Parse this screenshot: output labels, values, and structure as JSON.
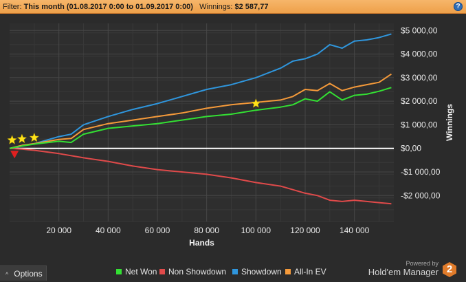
{
  "filter": {
    "label": "Filter:",
    "period": "This month (01.08.2017 0:00 to 01.09.2017 0:00)",
    "winnings_label": "Winnings:",
    "winnings_value": "$2 587,77",
    "help_icon": "question-icon",
    "help_glyph": "?"
  },
  "chart_data": {
    "type": "line",
    "xlabel": "Hands",
    "ylabel": "Winnings",
    "xlim": [
      0,
      156000
    ],
    "ylim": [
      -3100,
      5300
    ],
    "x_ticks": [
      20000,
      40000,
      60000,
      80000,
      100000,
      120000,
      140000
    ],
    "x_tick_labels": [
      "20 000",
      "40 000",
      "60 000",
      "80 000",
      "100 000",
      "120 000",
      "140 000"
    ],
    "y_ticks": [
      5000,
      4000,
      3000,
      2000,
      1000,
      0,
      -1000,
      -2000
    ],
    "y_tick_labels": [
      "$5 000,00",
      "$4 000,00",
      "$3 000,00",
      "$2 000,00",
      "$1 000,00",
      "$0,00",
      "-$1 000,00",
      "-$2 000,00"
    ],
    "grid": true,
    "legend_position": "bottom",
    "series": [
      {
        "name": "Net Won",
        "color": "#33e033",
        "x": [
          0,
          5000,
          10000,
          20000,
          25000,
          30000,
          40000,
          50000,
          60000,
          70000,
          80000,
          90000,
          100000,
          110000,
          115000,
          120000,
          125000,
          130000,
          135000,
          140000,
          145000,
          150000,
          155000
        ],
        "y": [
          0,
          100,
          180,
          300,
          250,
          600,
          850,
          950,
          1050,
          1200,
          1350,
          1450,
          1620,
          1750,
          1850,
          2100,
          2000,
          2400,
          2050,
          2250,
          2300,
          2420,
          2580
        ]
      },
      {
        "name": "Non Showdown",
        "color": "#e04a4a",
        "x": [
          0,
          5000,
          10000,
          20000,
          30000,
          40000,
          50000,
          60000,
          70000,
          80000,
          90000,
          100000,
          110000,
          120000,
          125000,
          130000,
          135000,
          140000,
          145000,
          150000,
          155000
        ],
        "y": [
          0,
          -30,
          -80,
          -220,
          -400,
          -550,
          -750,
          -900,
          -1000,
          -1100,
          -1250,
          -1450,
          -1600,
          -1900,
          -2000,
          -2200,
          -2250,
          -2200,
          -2250,
          -2300,
          -2350
        ]
      },
      {
        "name": "Showdown",
        "color": "#2f96dd",
        "x": [
          0,
          5000,
          10000,
          20000,
          25000,
          30000,
          40000,
          50000,
          60000,
          70000,
          80000,
          90000,
          100000,
          110000,
          115000,
          120000,
          125000,
          130000,
          135000,
          140000,
          145000,
          150000,
          155000
        ],
        "y": [
          0,
          100,
          200,
          500,
          600,
          1000,
          1350,
          1650,
          1900,
          2200,
          2500,
          2700,
          3000,
          3400,
          3700,
          3800,
          4000,
          4400,
          4250,
          4550,
          4600,
          4700,
          4850
        ]
      },
      {
        "name": "All-In EV",
        "color": "#f59a3a",
        "x": [
          0,
          5000,
          10000,
          20000,
          25000,
          30000,
          40000,
          50000,
          60000,
          70000,
          80000,
          90000,
          100000,
          110000,
          115000,
          120000,
          125000,
          130000,
          135000,
          140000,
          145000,
          150000,
          155000
        ],
        "y": [
          0,
          130,
          200,
          380,
          420,
          800,
          1050,
          1200,
          1350,
          1500,
          1700,
          1850,
          1950,
          2050,
          2200,
          2500,
          2450,
          2750,
          2450,
          2600,
          2700,
          2800,
          3150
        ]
      }
    ],
    "markers": [
      {
        "kind": "star",
        "x": 1000,
        "y": 350
      },
      {
        "kind": "star",
        "x": 5000,
        "y": 400
      },
      {
        "kind": "star",
        "x": 10000,
        "y": 450
      },
      {
        "kind": "star",
        "x": 100000,
        "y": 1900
      },
      {
        "kind": "triangle-down",
        "x": 2000,
        "y": -250
      }
    ]
  },
  "legend": {
    "items": [
      {
        "label": "Net Won",
        "color": "#33e033"
      },
      {
        "label": "Non Showdown",
        "color": "#e04a4a"
      },
      {
        "label": "Showdown",
        "color": "#2f96dd"
      },
      {
        "label": "All-In EV",
        "color": "#f59a3a"
      }
    ]
  },
  "options": {
    "label": "Options",
    "chevron_icon": "chevron-up-icon",
    "chevron_glyph": "^"
  },
  "brand": {
    "powered": "Powered by",
    "name": "Hold'em Manager",
    "logo_text": "2",
    "logo_icon": "hexagon-logo-icon"
  }
}
